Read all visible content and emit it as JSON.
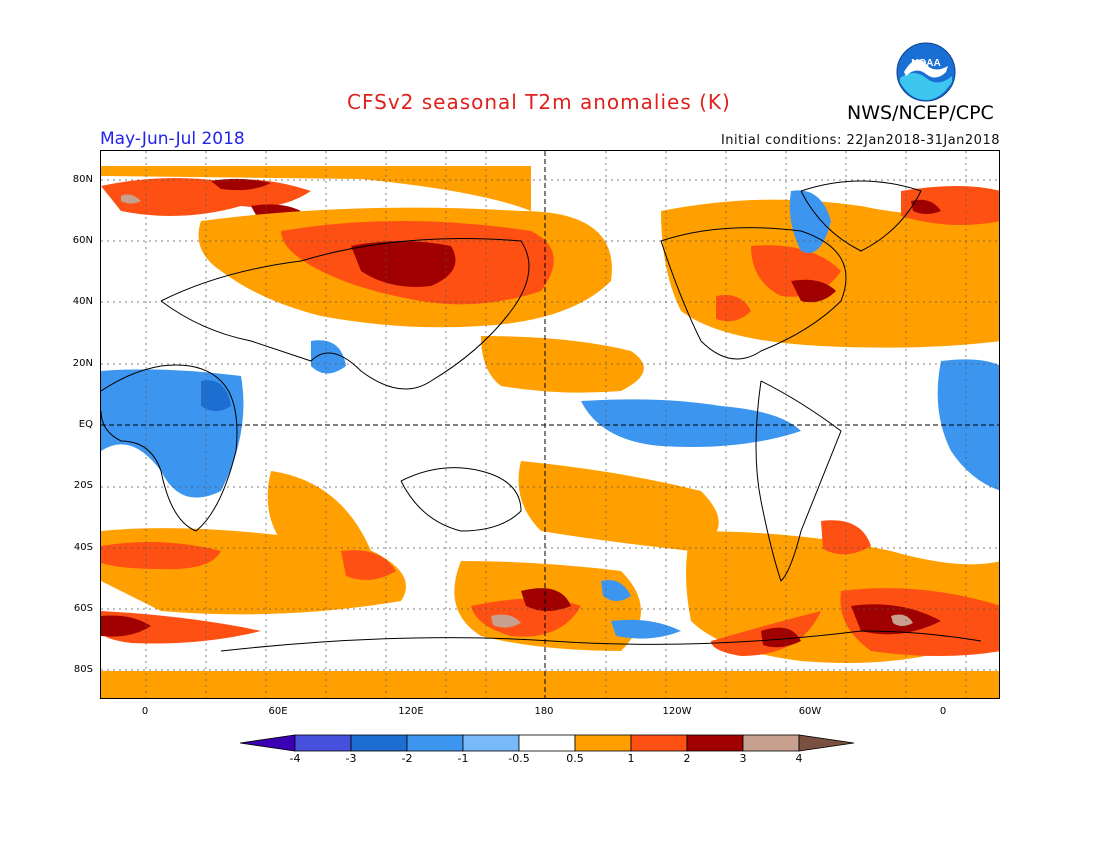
{
  "header": {
    "title": "CFSv2 seasonal T2m anomalies (K)",
    "season": "May-Jun-Jul 2018",
    "initial_conditions": "Initial conditions: 22Jan2018-31Jan2018",
    "organization": "NWS/NCEP/CPC",
    "logo_text": "NOAA"
  },
  "map": {
    "lat_labels": [
      "80N",
      "60N",
      "40N",
      "20N",
      "EQ",
      "20S",
      "40S",
      "60S",
      "80S"
    ],
    "lon_labels": [
      "0",
      "60E",
      "120E",
      "180",
      "120W",
      "60W",
      "0"
    ]
  },
  "colorbar": {
    "labels": [
      "-4",
      "-3",
      "-2",
      "-1",
      "-0.5",
      "0.5",
      "1",
      "2",
      "3",
      "4"
    ],
    "colors": [
      "#3c00b4",
      "#4650dc",
      "#1e6ed2",
      "#3c96f0",
      "#78b9fa",
      "#ffffff",
      "#ffa000",
      "#ff5014",
      "#a00000",
      "#c8a090",
      "#7a5040"
    ]
  }
}
